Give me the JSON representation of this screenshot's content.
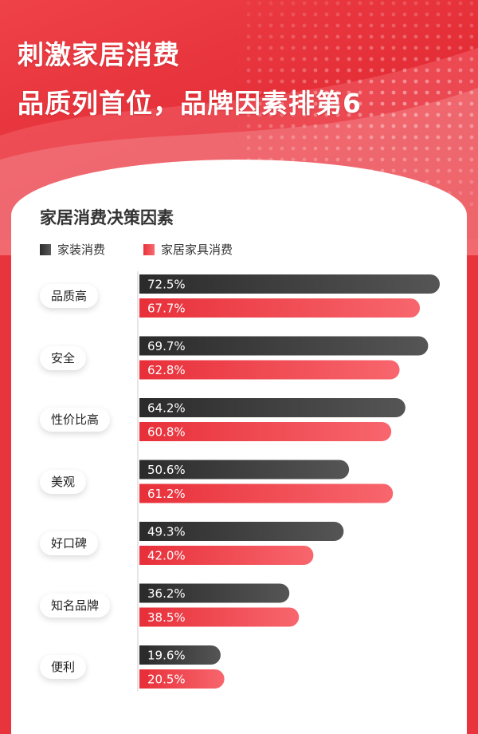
{
  "header": {
    "line1": "刺激家居消费",
    "line2": "品质列首位，品牌因素排第6"
  },
  "colors": {
    "background": "#e8343c",
    "series_dark": "#3a3a3a",
    "series_red": "#f04a52"
  },
  "chart_data": {
    "type": "bar",
    "orientation": "horizontal",
    "title": "家居消费决策因素",
    "legend_position": "top-left",
    "categories": [
      "品质高",
      "安全",
      "性价比高",
      "美观",
      "好口碑",
      "知名品牌",
      "便利"
    ],
    "series": [
      {
        "name": "家装消费",
        "values": [
          72.5,
          69.7,
          64.2,
          50.6,
          49.3,
          36.2,
          19.6
        ],
        "labels": [
          "72.5%",
          "69.7%",
          "64.2%",
          "50.6%",
          "49.3%",
          "36.2%",
          "19.6%"
        ]
      },
      {
        "name": "家居家具消费",
        "values": [
          67.7,
          62.8,
          60.8,
          61.2,
          42.0,
          38.5,
          20.5
        ],
        "labels": [
          "67.7%",
          "62.8%",
          "60.8%",
          "61.2%",
          "42.0%",
          "38.5%",
          "20.5%"
        ]
      }
    ],
    "xlim": [
      0,
      72.5
    ],
    "unit": "%"
  }
}
